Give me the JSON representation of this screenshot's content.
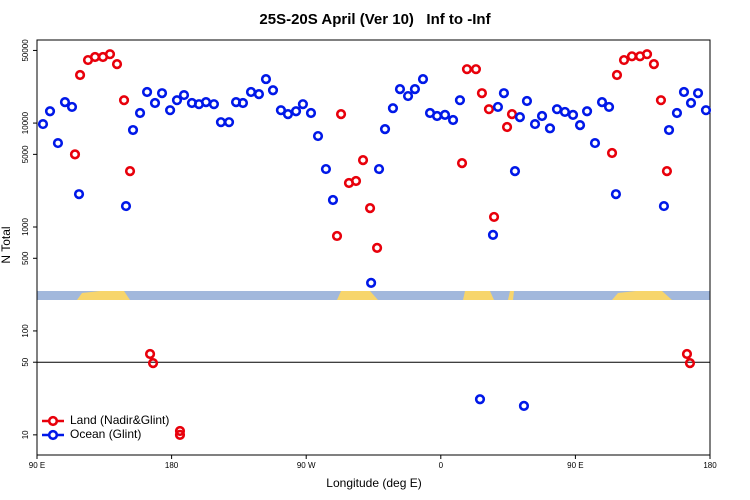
{
  "chart_data": {
    "type": "scatter",
    "title": "25S-20S April (Ver 10)   Inf to -Inf",
    "x_label": "Longitude (deg E)",
    "y_label": "N Total",
    "log_y": true,
    "xlim": [
      90,
      540
    ],
    "xticks": [
      {
        "value": 90,
        "label": "90 E"
      },
      {
        "value": 180,
        "label": "180"
      },
      {
        "value": 270,
        "label": "90 W"
      },
      {
        "value": 360,
        "label": "0"
      },
      {
        "value": 450,
        "label": "90 E"
      },
      {
        "value": 540,
        "label": "180"
      }
    ],
    "ylim": [
      6.4,
      63000
    ],
    "yticks": [
      10,
      50,
      100,
      500,
      1000,
      5000,
      10000,
      50000
    ],
    "hline": 50,
    "legend": "bottom-left",
    "series": [
      {
        "name": "Land (Nadir&Glint)",
        "color": "#e8000b",
        "x": [
          115.4,
          118.8,
          124.1,
          128.8,
          134.1,
          138.8,
          143.5,
          148.2,
          152.2,
          165.6,
          167.6,
          185.6,
          185.6,
          290.6,
          293.3,
          298.6,
          303.3,
          308.0,
          312.7,
          317.4,
          374.2,
          377.5,
          383.5,
          387.5,
          392.2,
          395.6,
          404.3,
          407.6,
          474.5,
          477.8,
          482.5,
          487.8,
          493.2,
          497.9,
          502.5,
          507.2,
          511.2,
          524.6,
          526.6
        ],
        "values": [
          5000,
          29000,
          40400,
          43200,
          43200,
          46000,
          36900,
          16600,
          3450,
          60,
          49,
          10.9,
          10,
          820,
          12200,
          2650,
          2770,
          4400,
          1520,
          630,
          4120,
          33000,
          33000,
          19400,
          13600,
          1250,
          9160,
          12200,
          5150,
          29000,
          40400,
          43900,
          43900,
          46000,
          36900,
          16600,
          3450,
          60,
          49
        ]
      },
      {
        "name": "Ocean (Glint)",
        "color": "#0018e8",
        "x": [
          94.0,
          98.7,
          104.0,
          108.7,
          113.4,
          118.1,
          149.5,
          154.2,
          158.9,
          163.6,
          168.9,
          173.6,
          179.0,
          183.6,
          188.3,
          193.6,
          198.3,
          203.0,
          208.3,
          213.0,
          218.4,
          223.1,
          227.7,
          233.1,
          238.4,
          243.1,
          247.8,
          253.1,
          257.8,
          263.2,
          267.8,
          273.2,
          277.9,
          283.2,
          287.9,
          313.4,
          318.7,
          322.7,
          328.0,
          332.7,
          338.1,
          342.7,
          348.1,
          352.8,
          357.5,
          362.8,
          368.2,
          372.8,
          386.2,
          394.9,
          398.2,
          402.2,
          409.6,
          412.9,
          417.6,
          423.0,
          427.7,
          433.0,
          437.7,
          443.0,
          448.4,
          453.1,
          457.8,
          463.1,
          467.8,
          472.5,
          477.1,
          415.6,
          509.2,
          512.6,
          517.9,
          522.6,
          527.3,
          532.0,
          537.3
        ],
        "values": [
          9780,
          13000,
          6420,
          15900,
          14300,
          2070,
          1590,
          8570,
          12500,
          19900,
          15600,
          19400,
          13300,
          16600,
          18600,
          15600,
          15200,
          15900,
          15200,
          10200,
          10200,
          15900,
          15600,
          19900,
          19000,
          26500,
          20700,
          13300,
          12200,
          13000,
          15200,
          12500,
          7500,
          3610,
          1820,
          290,
          3610,
          8750,
          13900,
          21200,
          18200,
          21200,
          26500,
          12500,
          11700,
          12000,
          10700,
          16600,
          22,
          840,
          14300,
          19400,
          3450,
          11400,
          16300,
          9780,
          11700,
          8900,
          13600,
          12800,
          12000,
          9560,
          13000,
          6420,
          15900,
          14300,
          2070,
          19,
          1590,
          8570,
          12500,
          19900,
          15600,
          19400,
          13300
        ]
      }
    ]
  }
}
